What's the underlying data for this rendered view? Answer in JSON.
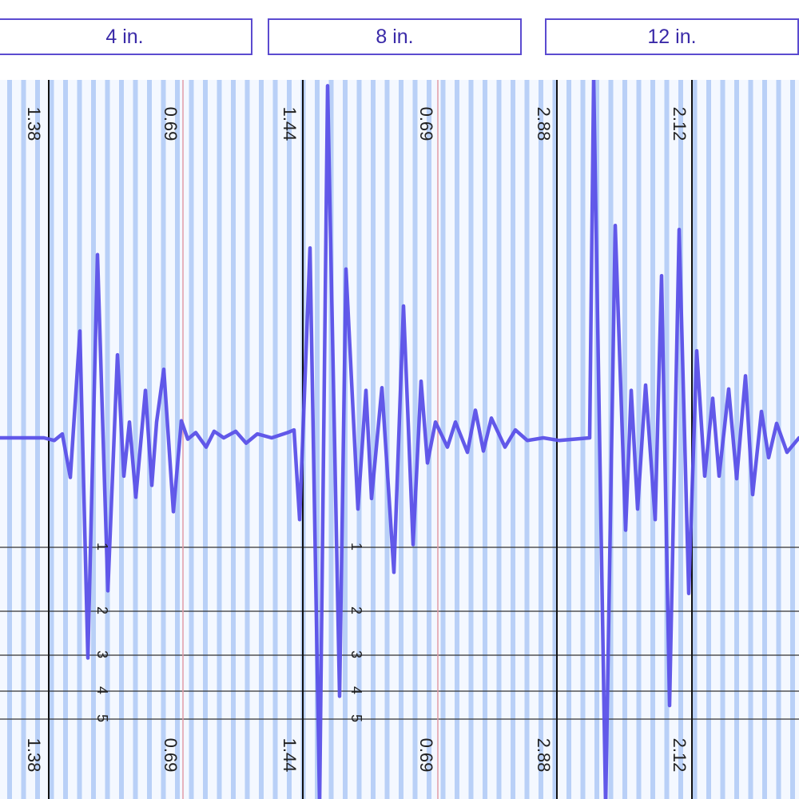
{
  "tabs": [
    {
      "label": "4 in."
    },
    {
      "label": "8 in."
    },
    {
      "label": "12 in."
    }
  ],
  "colors": {
    "trace": "#5a50e8",
    "stripe": "#b9d0f7",
    "background": "#f4f8ff",
    "divider": "#111111",
    "center_line": "#e29aa6",
    "tab_border": "#5b4bd0",
    "tab_text": "#3a2aa8"
  },
  "chart_data": {
    "type": "line",
    "title": "",
    "xlabel": "",
    "ylabel": "",
    "grid": true,
    "panels": [
      {
        "label": "4 in.",
        "top_labels": [
          "1.38",
          "0.69"
        ],
        "bottom_labels": [
          "1.38",
          "0.69"
        ]
      },
      {
        "label": "8 in.",
        "top_labels": [
          "1.44",
          "0.69",
          "2.88"
        ],
        "bottom_labels": [
          "1.44",
          "0.69",
          "2.88"
        ]
      },
      {
        "label": "12 in.",
        "top_labels": [
          "2.12"
        ],
        "bottom_labels": [
          "2.12"
        ]
      }
    ],
    "depth_markers": [
      {
        "group": 1,
        "labels": [
          "1",
          "2",
          "3",
          "4",
          "5"
        ]
      },
      {
        "group": 2,
        "labels": [
          "1",
          "2",
          "3",
          "4",
          "5"
        ]
      }
    ],
    "series": [
      {
        "values": [
          [
            0,
            0.0
          ],
          [
            28,
            0.0
          ],
          [
            55,
            0.0
          ],
          [
            68,
            -0.02
          ],
          [
            78,
            0.03
          ],
          [
            88,
            -0.3
          ],
          [
            100,
            0.81
          ],
          [
            110,
            -1.67
          ],
          [
            122,
            1.39
          ],
          [
            135,
            -1.16
          ],
          [
            147,
            0.63
          ],
          [
            155,
            -0.29
          ],
          [
            162,
            0.12
          ],
          [
            170,
            -0.45
          ],
          [
            182,
            0.36
          ],
          [
            190,
            -0.36
          ],
          [
            196,
            0.12
          ],
          [
            205,
            0.52
          ],
          [
            217,
            -0.56
          ],
          [
            227,
            0.13
          ],
          [
            235,
            -0.01
          ],
          [
            245,
            0.04
          ],
          [
            258,
            -0.07
          ],
          [
            268,
            0.05
          ],
          [
            280,
            0.0
          ],
          [
            295,
            0.05
          ],
          [
            308,
            -0.04
          ],
          [
            322,
            0.03
          ],
          [
            340,
            0.0
          ],
          [
            360,
            0.04
          ],
          [
            368,
            0.06
          ],
          [
            375,
            -0.62
          ],
          [
            388,
            1.44
          ],
          [
            400,
            -2.78
          ],
          [
            410,
            2.67
          ],
          [
            425,
            -1.96
          ],
          [
            433,
            1.28
          ],
          [
            448,
            -0.54
          ],
          [
            458,
            0.36
          ],
          [
            465,
            -0.46
          ],
          [
            478,
            0.38
          ],
          [
            493,
            -1.02
          ],
          [
            505,
            1.0
          ],
          [
            517,
            -0.81
          ],
          [
            527,
            0.43
          ],
          [
            535,
            -0.19
          ],
          [
            545,
            0.12
          ],
          [
            560,
            -0.07
          ],
          [
            570,
            0.12
          ],
          [
            585,
            -0.11
          ],
          [
            595,
            0.21
          ],
          [
            605,
            -0.1
          ],
          [
            615,
            0.15
          ],
          [
            632,
            -0.07
          ],
          [
            645,
            0.06
          ],
          [
            660,
            -0.02
          ],
          [
            680,
            0.0
          ],
          [
            700,
            -0.02
          ],
          [
            738,
            0.0
          ],
          [
            743,
            2.73
          ],
          [
            758,
            -2.84
          ],
          [
            770,
            1.61
          ],
          [
            783,
            -0.7
          ],
          [
            790,
            0.36
          ],
          [
            798,
            -0.54
          ],
          [
            808,
            0.4
          ],
          [
            820,
            -0.62
          ],
          [
            828,
            1.23
          ],
          [
            838,
            -2.03
          ],
          [
            850,
            1.58
          ],
          [
            862,
            -1.18
          ],
          [
            872,
            0.66
          ],
          [
            882,
            -0.29
          ],
          [
            892,
            0.3
          ],
          [
            900,
            -0.29
          ],
          [
            912,
            0.37
          ],
          [
            922,
            -0.31
          ],
          [
            933,
            0.47
          ],
          [
            942,
            -0.43
          ],
          [
            953,
            0.2
          ],
          [
            962,
            -0.15
          ],
          [
            972,
            0.11
          ],
          [
            985,
            -0.11
          ],
          [
            1000,
            0.0
          ]
        ]
      }
    ]
  }
}
